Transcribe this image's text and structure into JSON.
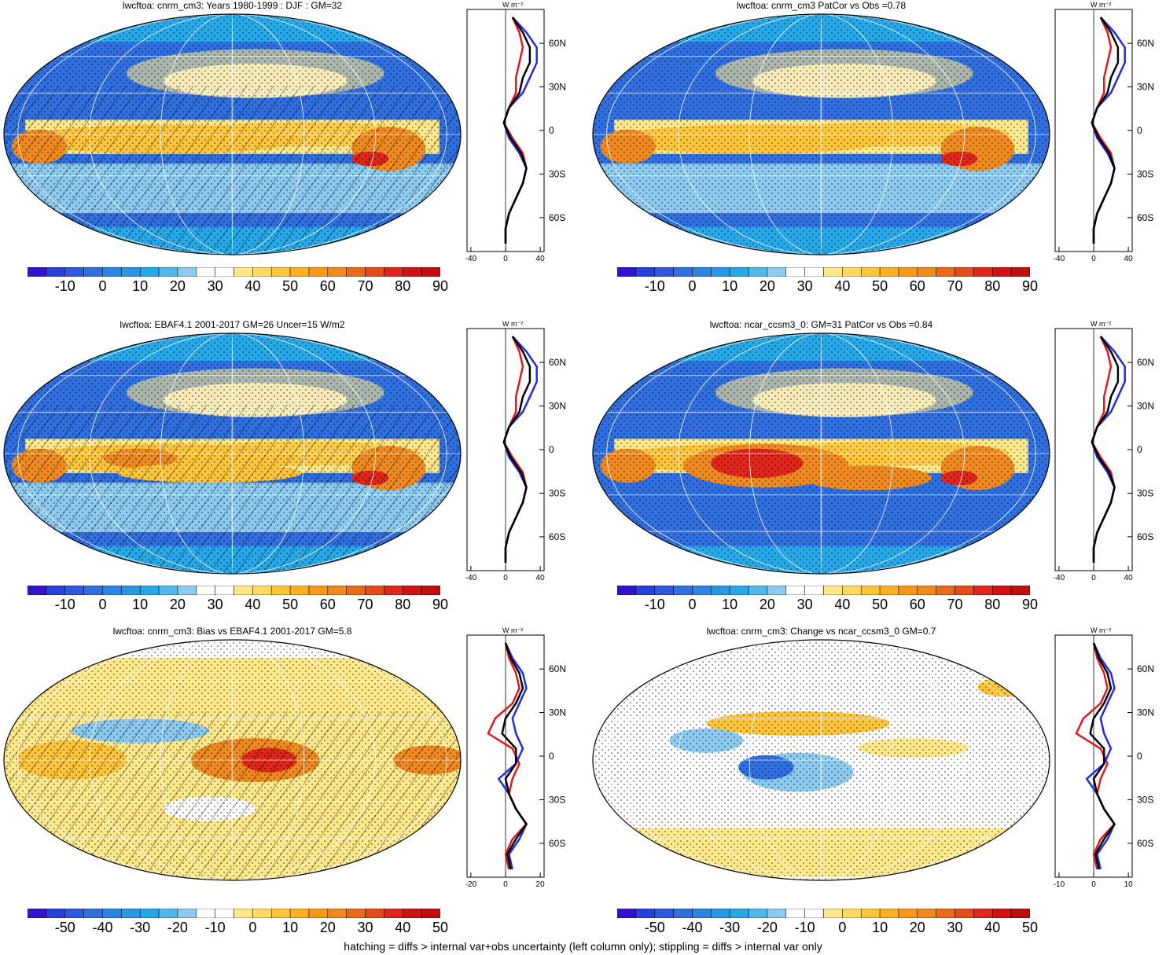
{
  "colors": {
    "low": "#2a1fd8",
    "blue": "#2f6fe0",
    "lightblue": "#27a9e9",
    "paleblue": "#8ccaf0",
    "white": "#ffffff",
    "paleyellow": "#ffe88a",
    "yellow": "#ffc53a",
    "orange": "#f08a1e",
    "red": "#e0261b",
    "darkred": "#c00d0d",
    "zonal_model": "#000000",
    "zonal_obs": "#1f2de0",
    "zonal_other": "#e01a1a"
  },
  "panels": [
    {
      "title": "lwcftoa: cnrm_cm3: Years 1980-1999 : DJF : GM=32",
      "colorbar_ticks": [
        "-10",
        "0",
        "10",
        "20",
        "30",
        "40",
        "50",
        "60",
        "70",
        "80",
        "90"
      ],
      "zonal": {
        "unit": "W m⁻²",
        "xticks": [
          "-40",
          "0",
          "40"
        ],
        "lat_ticks": [
          "60N",
          "30N",
          "0",
          "30S",
          "60S"
        ]
      },
      "hatching": true,
      "stippling": true
    },
    {
      "title": "lwcftoa: cnrm_cm3 PatCor vs Obs =0.78",
      "colorbar_ticks": [
        "-10",
        "0",
        "10",
        "20",
        "30",
        "40",
        "50",
        "60",
        "70",
        "80",
        "90"
      ],
      "zonal": {
        "unit": "W m⁻²",
        "xticks": [
          "-40",
          "0",
          "40"
        ],
        "lat_ticks": [
          "60N",
          "30N",
          "0",
          "30S",
          "60S"
        ]
      },
      "hatching": false,
      "stippling": true
    },
    {
      "title": "lwcftoa: EBAF4.1 2001-2017 GM=26 Uncer=15 W/m2",
      "colorbar_ticks": [
        "-10",
        "0",
        "10",
        "20",
        "30",
        "40",
        "50",
        "60",
        "70",
        "80",
        "90"
      ],
      "zonal": {
        "unit": "W m⁻²",
        "xticks": [
          "-40",
          "0",
          "40"
        ],
        "lat_ticks": [
          "60N",
          "30N",
          "0",
          "30S",
          "60S"
        ]
      },
      "hatching": true,
      "stippling": true
    },
    {
      "title": "lwcftoa: ncar_ccsm3_0: GM=31 PatCor vs Obs =0.84",
      "colorbar_ticks": [
        "-10",
        "0",
        "10",
        "20",
        "30",
        "40",
        "50",
        "60",
        "70",
        "80",
        "90"
      ],
      "zonal": {
        "unit": "W m⁻²",
        "xticks": [
          "-40",
          "0",
          "40"
        ],
        "lat_ticks": [
          "60N",
          "30N",
          "0",
          "30S",
          "60S"
        ]
      },
      "hatching": false,
      "stippling": true
    },
    {
      "title": "lwcftoa: cnrm_cm3: Bias vs EBAF4.1 2001-2017 GM=5.8",
      "colorbar_ticks": [
        "-50",
        "-40",
        "-30",
        "-20",
        "-10",
        "0",
        "10",
        "20",
        "30",
        "40",
        "50"
      ],
      "zonal": {
        "unit": "W m⁻²",
        "xticks": [
          "-20",
          "0",
          "20"
        ],
        "lat_ticks": [
          "60N",
          "30N",
          "0",
          "30S",
          "60S"
        ]
      },
      "hatching": true,
      "stippling": true
    },
    {
      "title": "lwcftoa: cnrm_cm3: Change vs ncar_ccsm3_0 GM=0.7",
      "colorbar_ticks": [
        "-50",
        "-40",
        "-30",
        "-20",
        "-10",
        "0",
        "10",
        "20",
        "30",
        "40",
        "50"
      ],
      "zonal": {
        "unit": "W m⁻²",
        "xticks": [
          "-10",
          "0",
          "10"
        ],
        "lat_ticks": [
          "60N",
          "30N",
          "0",
          "30S",
          "60S"
        ]
      },
      "hatching": false,
      "stippling": true
    }
  ],
  "caption": "hatching = diffs > internal var+obs uncertainty (left column only); stippling = diffs > internal var only"
}
